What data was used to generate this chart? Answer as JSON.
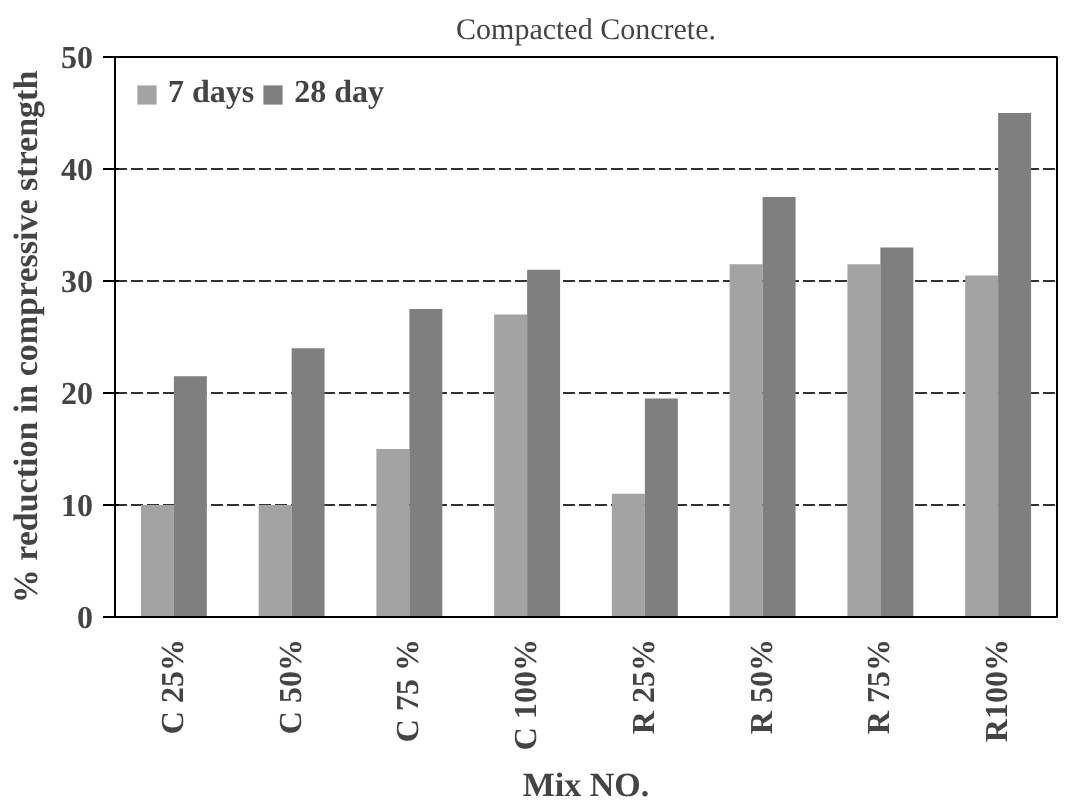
{
  "chart_data": {
    "type": "bar",
    "title": "Compacted Concrete.",
    "xlabel": "Mix NO.",
    "ylabel": "% reduction in compressive strength",
    "categories": [
      "C 25%",
      "C 50%",
      "C 75 %",
      "C 100%",
      "R 25%",
      "R 50%",
      "R 75%",
      "R100%"
    ],
    "series": [
      {
        "name": "7 days",
        "color": "#a3a3a3",
        "values": [
          10,
          10,
          15,
          27,
          11,
          31.5,
          31.5,
          30.5
        ]
      },
      {
        "name": "28 day",
        "color": "#7f7f7f",
        "values": [
          21.5,
          24,
          27.5,
          31,
          19.5,
          37.5,
          33,
          45
        ]
      }
    ],
    "ylim": [
      0,
      50
    ],
    "yticks": [
      0,
      10,
      20,
      30,
      40,
      50
    ],
    "grid": "y",
    "legend": "top left"
  }
}
